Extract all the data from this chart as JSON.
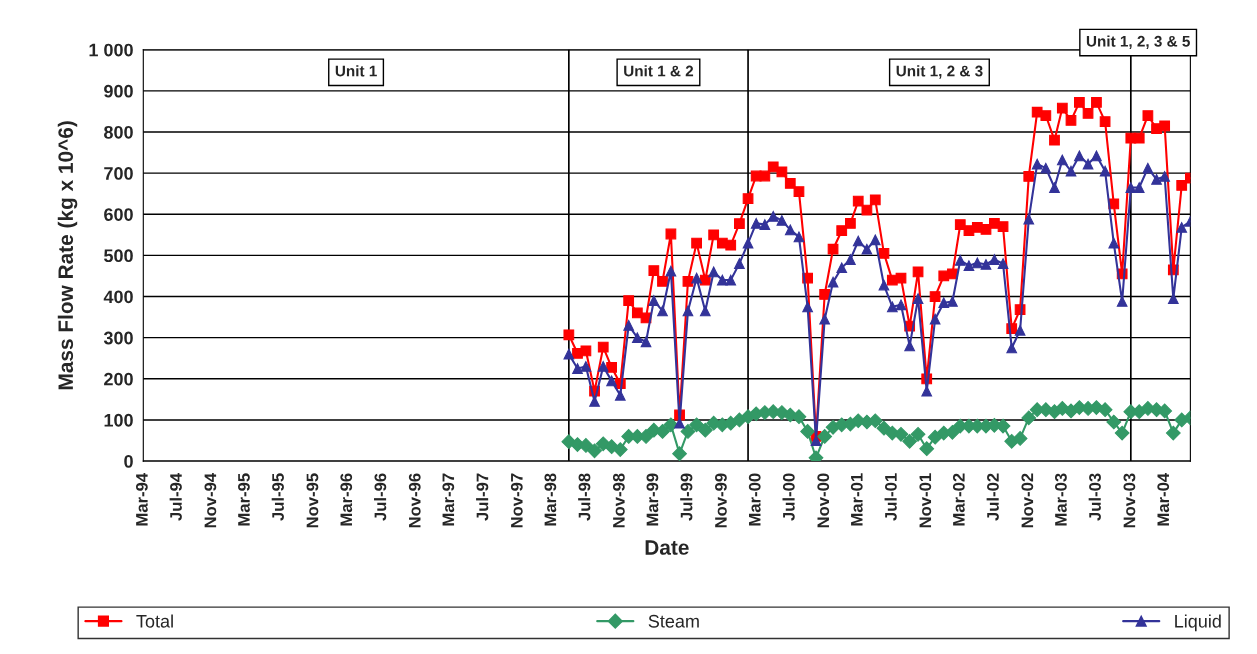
{
  "chart_data": {
    "type": "line",
    "xlabel": "Date",
    "ylabel": "Mass Flow Rate (kg x 10^6)",
    "x": [
      "1998-05",
      "1998-06",
      "1998-07",
      "1998-08",
      "1998-09",
      "1998-10",
      "1998-11",
      "1998-12",
      "1999-01",
      "1999-02",
      "1999-03",
      "1999-04",
      "1999-05",
      "1999-06",
      "1999-07",
      "1999-08",
      "1999-09",
      "1999-10",
      "1999-11",
      "1999-12",
      "2000-01",
      "2000-02",
      "2000-03",
      "2000-04",
      "2000-05",
      "2000-06",
      "2000-07",
      "2000-08",
      "2000-09",
      "2000-10",
      "2000-11",
      "2000-12",
      "2001-01",
      "2001-02",
      "2001-03",
      "2001-04",
      "2001-05",
      "2001-06",
      "2001-07",
      "2001-08",
      "2001-09",
      "2001-10",
      "2001-11",
      "2001-12",
      "2002-01",
      "2002-02",
      "2002-03",
      "2002-04",
      "2002-05",
      "2002-06",
      "2002-07",
      "2002-08",
      "2002-09",
      "2002-10",
      "2002-11",
      "2002-12",
      "2003-01",
      "2003-02",
      "2003-03",
      "2003-04",
      "2003-05",
      "2003-06",
      "2003-07",
      "2003-08",
      "2003-09",
      "2003-10",
      "2003-11",
      "2003-12",
      "2004-01",
      "2004-02",
      "2004-03",
      "2004-04",
      "2004-05",
      "2004-06"
    ],
    "series": [
      {
        "name": "Total",
        "color": "#ff0000",
        "marker": "square",
        "values": [
          307,
          262,
          268,
          170,
          277,
          228,
          188,
          390,
          360,
          348,
          463,
          437,
          552,
          112,
          437,
          530,
          440,
          550,
          530,
          525,
          577,
          638,
          693,
          693,
          715,
          703,
          675,
          655,
          445,
          60,
          405,
          515,
          560,
          578,
          632,
          610,
          635,
          505,
          440,
          445,
          328,
          460,
          200,
          400,
          450,
          455,
          575,
          560,
          568,
          563,
          578,
          570,
          322,
          368,
          692,
          848,
          840,
          780,
          858,
          828,
          872,
          845,
          872,
          825,
          625,
          455,
          785,
          785,
          840,
          808,
          815,
          465,
          670,
          688
        ]
      },
      {
        "name": "Steam",
        "color": "#339966",
        "marker": "diamond",
        "values": [
          47,
          40,
          38,
          25,
          42,
          35,
          28,
          60,
          60,
          60,
          75,
          72,
          88,
          18,
          72,
          88,
          75,
          92,
          88,
          92,
          100,
          108,
          115,
          118,
          120,
          118,
          112,
          108,
          72,
          8,
          60,
          82,
          88,
          90,
          98,
          95,
          98,
          80,
          68,
          65,
          48,
          65,
          30,
          58,
          68,
          70,
          85,
          85,
          85,
          85,
          87,
          85,
          48,
          55,
          105,
          125,
          125,
          120,
          128,
          122,
          130,
          128,
          130,
          125,
          95,
          68,
          120,
          120,
          128,
          125,
          122,
          68,
          100,
          105
        ]
      },
      {
        "name": "Liquid",
        "color": "#333399",
        "marker": "triangle",
        "values": [
          260,
          225,
          230,
          145,
          230,
          195,
          160,
          330,
          300,
          290,
          390,
          365,
          462,
          92,
          365,
          445,
          365,
          460,
          440,
          440,
          480,
          530,
          578,
          575,
          595,
          585,
          562,
          545,
          375,
          50,
          345,
          435,
          470,
          490,
          535,
          515,
          538,
          428,
          375,
          380,
          280,
          395,
          170,
          345,
          385,
          388,
          488,
          475,
          482,
          478,
          490,
          480,
          275,
          318,
          588,
          722,
          712,
          665,
          732,
          705,
          742,
          722,
          742,
          705,
          530,
          388,
          665,
          665,
          712,
          685,
          692,
          395,
          568,
          583
        ]
      }
    ],
    "xlim": [
      "1994-03",
      "2004-06"
    ],
    "xticks": [
      {
        "value": "1994-03",
        "label": "Mar-94"
      },
      {
        "value": "1994-07",
        "label": "Jul-94"
      },
      {
        "value": "1994-11",
        "label": "Nov-94"
      },
      {
        "value": "1995-03",
        "label": "Mar-95"
      },
      {
        "value": "1995-07",
        "label": "Jul-95"
      },
      {
        "value": "1995-11",
        "label": "Nov-95"
      },
      {
        "value": "1996-03",
        "label": "Mar-96"
      },
      {
        "value": "1996-07",
        "label": "Jul-96"
      },
      {
        "value": "1996-11",
        "label": "Nov-96"
      },
      {
        "value": "1997-03",
        "label": "Mar-97"
      },
      {
        "value": "1997-07",
        "label": "Jul-97"
      },
      {
        "value": "1997-11",
        "label": "Nov-97"
      },
      {
        "value": "1998-03",
        "label": "Mar-98"
      },
      {
        "value": "1998-07",
        "label": "Jul-98"
      },
      {
        "value": "1998-11",
        "label": "Nov-98"
      },
      {
        "value": "1999-03",
        "label": "Mar-99"
      },
      {
        "value": "1999-07",
        "label": "Jul-99"
      },
      {
        "value": "1999-11",
        "label": "Nov-99"
      },
      {
        "value": "2000-03",
        "label": "Mar-00"
      },
      {
        "value": "2000-07",
        "label": "Jul-00"
      },
      {
        "value": "2000-11",
        "label": "Nov-00"
      },
      {
        "value": "2001-03",
        "label": "Mar-01"
      },
      {
        "value": "2001-07",
        "label": "Jul-01"
      },
      {
        "value": "2001-11",
        "label": "Nov-01"
      },
      {
        "value": "2002-03",
        "label": "Mar-02"
      },
      {
        "value": "2002-07",
        "label": "Jul-02"
      },
      {
        "value": "2002-11",
        "label": "Nov-02"
      },
      {
        "value": "2003-03",
        "label": "Mar-03"
      },
      {
        "value": "2003-07",
        "label": "Jul-03"
      },
      {
        "value": "2003-11",
        "label": "Nov-03"
      },
      {
        "value": "2004-03",
        "label": "Mar-04"
      }
    ],
    "ylim": [
      0,
      1000
    ],
    "yticks": [
      0,
      100,
      200,
      300,
      400,
      500,
      600,
      700,
      800,
      900,
      {
        "value": 1000,
        "label": "1 000"
      }
    ],
    "grid": "y",
    "legend": "bottom",
    "line_style": "solid",
    "ref_lines": [
      {
        "axis": "x",
        "value": "1998-05",
        "label": null,
        "color": "#000000"
      },
      {
        "axis": "x",
        "value": "2000-02",
        "label": null,
        "color": "#000000"
      },
      {
        "axis": "x",
        "value": "2003-11",
        "label": null,
        "color": "#000000"
      }
    ],
    "annotations": [
      "Unit 1",
      "Unit 1 & 2",
      "Unit 1, 2 & 3",
      "Unit 1, 2, 3 & 5"
    ]
  }
}
